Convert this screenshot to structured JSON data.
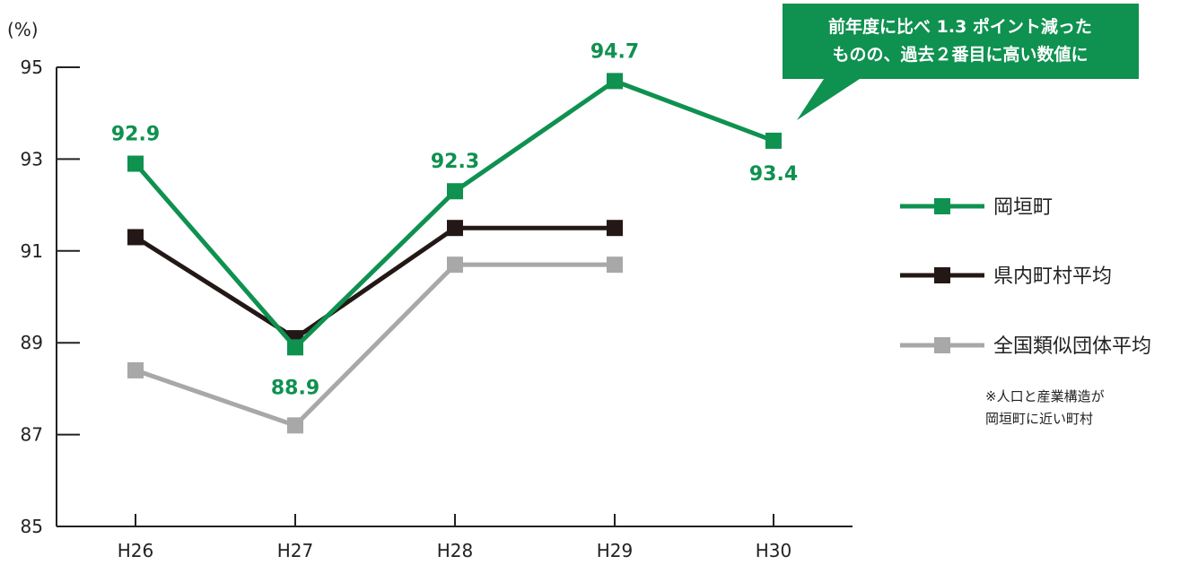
{
  "colors": {
    "okagaki": "#0f9150",
    "prefecture": "#231815",
    "national": "#a8a8a8",
    "axis": "#222222",
    "callout_bg": "#0f9150",
    "callout_text": "#ffffff"
  },
  "chart_data": {
    "type": "line",
    "y_unit_label": "(%)",
    "ylim": [
      85,
      95
    ],
    "y_ticks": [
      85,
      87,
      89,
      91,
      93,
      95
    ],
    "categories": [
      "H26",
      "H27",
      "H28",
      "H29",
      "H30"
    ],
    "grid": false,
    "legend_position": "right",
    "series": [
      {
        "name": "岡垣町",
        "color_key": "okagaki",
        "values": [
          92.9,
          88.9,
          92.3,
          94.7,
          93.4
        ],
        "data_labels": [
          "92.9",
          "88.9",
          "92.3",
          "94.7",
          "93.4"
        ]
      },
      {
        "name": "県内町村平均",
        "color_key": "prefecture",
        "values": [
          91.3,
          89.1,
          91.5,
          91.5,
          null
        ]
      },
      {
        "name": "全国類似団体平均",
        "color_key": "national",
        "values": [
          88.4,
          87.2,
          90.7,
          90.7,
          null
        ]
      }
    ],
    "annotation": {
      "lines": [
        "前年度に比べ 1.3 ポイント減った",
        "ものの、過去２番目に高い数値に"
      ]
    },
    "footnote": [
      "※人口と産業構造が",
      "岡垣町に近い町村"
    ]
  }
}
